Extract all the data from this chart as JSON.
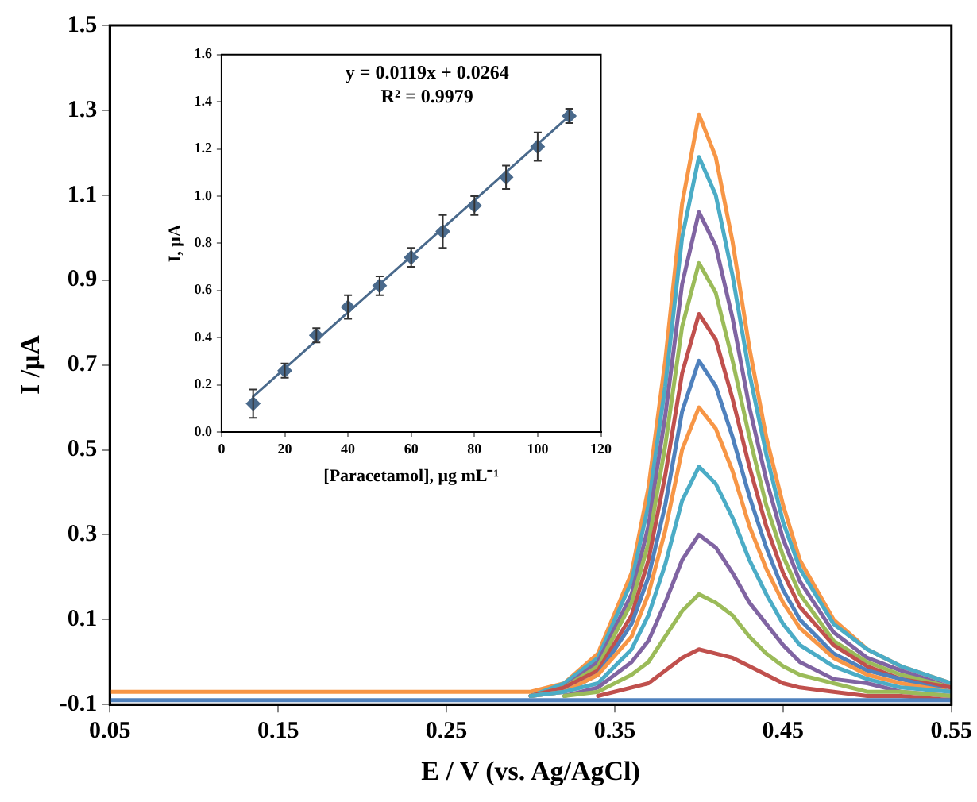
{
  "chart_data": [
    {
      "type": "line",
      "xlabel": "E / V (vs. Ag/AgCl)",
      "ylabel": "I /μA",
      "marker": "none",
      "legend": false,
      "x": [
        0.05,
        0.1,
        0.15,
        0.2,
        0.25,
        0.3,
        0.32,
        0.34,
        0.36,
        0.37,
        0.38,
        0.39,
        0.4,
        0.41,
        0.42,
        0.43,
        0.44,
        0.45,
        0.46,
        0.48,
        0.5,
        0.52,
        0.55
      ],
      "xlim": [
        0.05,
        0.55
      ],
      "xticks": [
        0.05,
        0.15,
        0.25,
        0.35,
        0.45,
        0.55
      ],
      "ylim": [
        -0.1,
        1.5
      ],
      "yticks": [
        -0.1,
        0.1,
        0.3,
        0.5,
        0.7,
        0.9,
        1.1,
        1.3,
        1.5
      ],
      "series": [
        {
          "color": "#4f81bd",
          "values": [
            -0.09,
            -0.09,
            -0.09,
            -0.09,
            -0.09,
            -0.09,
            -0.09,
            -0.09,
            -0.09,
            -0.09,
            -0.09,
            -0.09,
            -0.09,
            -0.09,
            -0.09,
            -0.09,
            -0.09,
            -0.09,
            -0.09,
            -0.09,
            -0.09,
            -0.09,
            -0.09
          ]
        },
        {
          "color": "#c0504d",
          "values": [
            null,
            null,
            null,
            null,
            null,
            null,
            null,
            -0.08,
            -0.06,
            -0.05,
            -0.02,
            0.01,
            0.03,
            0.02,
            0.01,
            -0.01,
            -0.03,
            -0.05,
            -0.06,
            -0.07,
            -0.08,
            -0.08,
            -0.09
          ]
        },
        {
          "color": "#9bbb59",
          "values": [
            null,
            null,
            null,
            null,
            null,
            null,
            -0.08,
            -0.07,
            -0.03,
            0.0,
            0.06,
            0.12,
            0.16,
            0.14,
            0.11,
            0.06,
            0.02,
            -0.01,
            -0.03,
            -0.05,
            -0.07,
            -0.07,
            -0.08
          ]
        },
        {
          "color": "#8064a2",
          "values": [
            null,
            null,
            null,
            null,
            null,
            null,
            -0.08,
            -0.06,
            0.0,
            0.05,
            0.14,
            0.24,
            0.3,
            0.27,
            0.21,
            0.14,
            0.09,
            0.04,
            0.0,
            -0.04,
            -0.05,
            -0.07,
            -0.08
          ]
        },
        {
          "color": "#4bacc6",
          "values": [
            null,
            null,
            null,
            null,
            null,
            -0.08,
            -0.07,
            -0.05,
            0.03,
            0.11,
            0.23,
            0.38,
            0.46,
            0.42,
            0.34,
            0.24,
            0.16,
            0.09,
            0.04,
            -0.01,
            -0.04,
            -0.06,
            -0.07
          ]
        },
        {
          "color": "#f79646",
          "values": [
            null,
            null,
            null,
            null,
            null,
            -0.08,
            -0.07,
            -0.03,
            0.06,
            0.16,
            0.31,
            0.5,
            0.6,
            0.55,
            0.45,
            0.32,
            0.22,
            0.14,
            0.08,
            0.01,
            -0.03,
            -0.05,
            -0.07
          ]
        },
        {
          "color": "#4f81bd",
          "values": [
            null,
            null,
            null,
            null,
            null,
            -0.08,
            -0.07,
            -0.03,
            0.09,
            0.2,
            0.37,
            0.59,
            0.71,
            0.65,
            0.53,
            0.39,
            0.27,
            0.17,
            0.1,
            0.02,
            -0.02,
            -0.04,
            -0.07
          ]
        },
        {
          "color": "#c0504d",
          "values": [
            null,
            null,
            null,
            null,
            null,
            -0.08,
            -0.06,
            -0.02,
            0.11,
            0.24,
            0.44,
            0.68,
            0.82,
            0.76,
            0.62,
            0.46,
            0.32,
            0.21,
            0.13,
            0.04,
            -0.01,
            -0.04,
            -0.06
          ]
        },
        {
          "color": "#9bbb59",
          "values": [
            null,
            null,
            null,
            null,
            null,
            -0.08,
            -0.06,
            -0.01,
            0.14,
            0.28,
            0.51,
            0.79,
            0.94,
            0.87,
            0.71,
            0.53,
            0.37,
            0.25,
            0.16,
            0.05,
            0.0,
            -0.03,
            -0.06
          ]
        },
        {
          "color": "#8064a2",
          "values": [
            null,
            null,
            null,
            null,
            null,
            -0.08,
            -0.06,
            0.0,
            0.16,
            0.32,
            0.58,
            0.89,
            1.06,
            0.98,
            0.81,
            0.6,
            0.43,
            0.29,
            0.19,
            0.07,
            0.01,
            -0.02,
            -0.06
          ]
        },
        {
          "color": "#4bacc6",
          "values": [
            null,
            null,
            null,
            null,
            null,
            -0.08,
            -0.05,
            0.01,
            0.19,
            0.37,
            0.65,
            1.0,
            1.19,
            1.1,
            0.91,
            0.68,
            0.49,
            0.33,
            0.22,
            0.09,
            0.03,
            -0.01,
            -0.05
          ]
        },
        {
          "color": "#f79646",
          "values": [
            -0.07,
            -0.07,
            -0.07,
            -0.07,
            -0.07,
            -0.07,
            -0.05,
            0.02,
            0.21,
            0.41,
            0.71,
            1.08,
            1.29,
            1.19,
            0.99,
            0.74,
            0.53,
            0.37,
            0.24,
            0.1,
            0.03,
            -0.01,
            -0.05
          ]
        }
      ]
    },
    {
      "type": "scatter",
      "xlabel": "[Paracetamol], μg mL⁻¹",
      "ylabel": "I, μA",
      "marker": "diamond",
      "legend": false,
      "annotations": [
        "y = 0.0119x + 0.0264",
        "R² = 0.9979"
      ],
      "xlim": [
        0,
        120
      ],
      "xticks": [
        0,
        20,
        40,
        60,
        80,
        100,
        120
      ],
      "ylim": [
        0,
        1.6
      ],
      "yticks": [
        {
          "value": 0,
          "label": "0.0"
        },
        0.2,
        0.4,
        0.6,
        0.8,
        {
          "value": 1,
          "label": "1.0"
        },
        1.2,
        1.4,
        1.6
      ],
      "series": [
        {
          "color": "#4a6a8c",
          "x": [
            10,
            20,
            30,
            40,
            50,
            60,
            70,
            80,
            90,
            100,
            110
          ],
          "values": [
            0.12,
            0.26,
            0.41,
            0.53,
            0.62,
            0.74,
            0.85,
            0.96,
            1.08,
            1.21,
            1.34
          ],
          "errors": [
            0.06,
            0.03,
            0.03,
            0.05,
            0.04,
            0.04,
            0.07,
            0.04,
            0.05,
            0.06,
            0.03
          ]
        },
        {
          "type": "line",
          "marker": "none",
          "color": "#4a6a8c",
          "x": [
            10,
            110
          ],
          "values": [
            0.15,
            1.34
          ]
        }
      ]
    }
  ]
}
